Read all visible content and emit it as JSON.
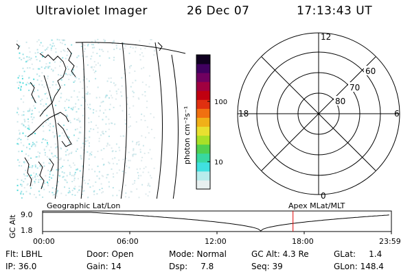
{
  "header": {
    "title": "Ultraviolet Imager",
    "date": "26 Dec 07",
    "time": "17:13:43 UT"
  },
  "colorbar": {
    "label": "photon cm⁻²s⁻¹",
    "ticks": [
      "100",
      "10"
    ],
    "colors": [
      "#e8f0f0",
      "#b8ecec",
      "#40e0e0",
      "#38d8a0",
      "#50d050",
      "#a8e028",
      "#e8e030",
      "#f0b018",
      "#f07010",
      "#e03010",
      "#c00010",
      "#a00040",
      "#700060",
      "#400060",
      "#100020"
    ]
  },
  "polar": {
    "mlt_labels": {
      "top": "12",
      "bottom": "0",
      "left": "18",
      "right": "6"
    },
    "lat_labels": [
      "60",
      "70",
      "80"
    ]
  },
  "timeline": {
    "ylabel": "GC Alt",
    "ymax": "9.0",
    "ymin": "1.8",
    "left_title": "Geographic Lat/Lon",
    "right_title": "Apex  MLat/MLT",
    "x_ticks": [
      "00:00",
      "06:00",
      "12:00",
      "18:00",
      "23:59"
    ],
    "marker_time": "17:13",
    "marker_color": "#e00000",
    "curve_color": "#000000"
  },
  "status": {
    "flt": "Flt: LBHL",
    "ip": "IP: 36.0",
    "door": "Door: Open",
    "gain": "Gain: 14",
    "mode": "Mode: Normal",
    "dsp": "Dsp:     7.8",
    "gcalt": "GC Alt: 4.3 Re",
    "seq": "Seq: 39",
    "glat": "GLat:     1.4",
    "glon": "GLon: 148.4"
  }
}
